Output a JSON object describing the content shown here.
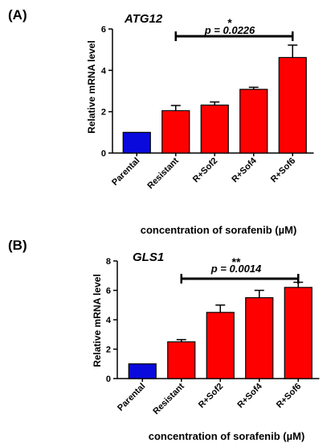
{
  "figure": {
    "panels": [
      {
        "label": "(A)",
        "gene": "ATG12",
        "ylabel": "Relative mRNA level",
        "xlabel": "concentration of sorafenib (µM)",
        "significance": {
          "stars": "*",
          "p_text": "p = 0.0226",
          "from": "Resistant",
          "to": "R+Sof6"
        }
      },
      {
        "label": "(B)",
        "gene": "GLS1",
        "ylabel": "Relative mRNA level",
        "xlabel": "concentration of sorafenib (µM)",
        "significance": {
          "stars": "**",
          "p_text": "p = 0.0014",
          "from": "Resistant",
          "to": "R+Sof6"
        }
      }
    ]
  },
  "chart_data": [
    {
      "type": "bar",
      "title": "ATG12",
      "categories": [
        "Parental",
        "Resistant",
        "R+Sof2",
        "R+Sof4",
        "R+Sof6"
      ],
      "values": [
        1.0,
        2.05,
        2.32,
        3.08,
        4.62
      ],
      "errors": [
        0.0,
        0.25,
        0.15,
        0.1,
        0.6
      ],
      "colors": [
        "#0a0adc",
        "#ff0000",
        "#ff0000",
        "#ff0000",
        "#ff0000"
      ],
      "xlabel": "concentration of sorafenib (µM)",
      "ylabel": "Relative mRNA level",
      "ylim": [
        0,
        6
      ],
      "yticks": [
        0,
        2,
        4,
        6
      ],
      "grid": false
    },
    {
      "type": "bar",
      "title": "GLS1",
      "categories": [
        "Parental",
        "Resistant",
        "R+Sof2",
        "R+Sof4",
        "R+Sof6"
      ],
      "values": [
        1.0,
        2.5,
        4.5,
        5.5,
        6.2
      ],
      "errors": [
        0.0,
        0.15,
        0.5,
        0.5,
        0.35
      ],
      "colors": [
        "#0a0adc",
        "#ff0000",
        "#ff0000",
        "#ff0000",
        "#ff0000"
      ],
      "xlabel": "concentration of sorafenib (µM)",
      "ylabel": "Relative mRNA level",
      "ylim": [
        0,
        8
      ],
      "yticks": [
        0,
        2,
        4,
        6,
        8
      ],
      "grid": false
    }
  ]
}
